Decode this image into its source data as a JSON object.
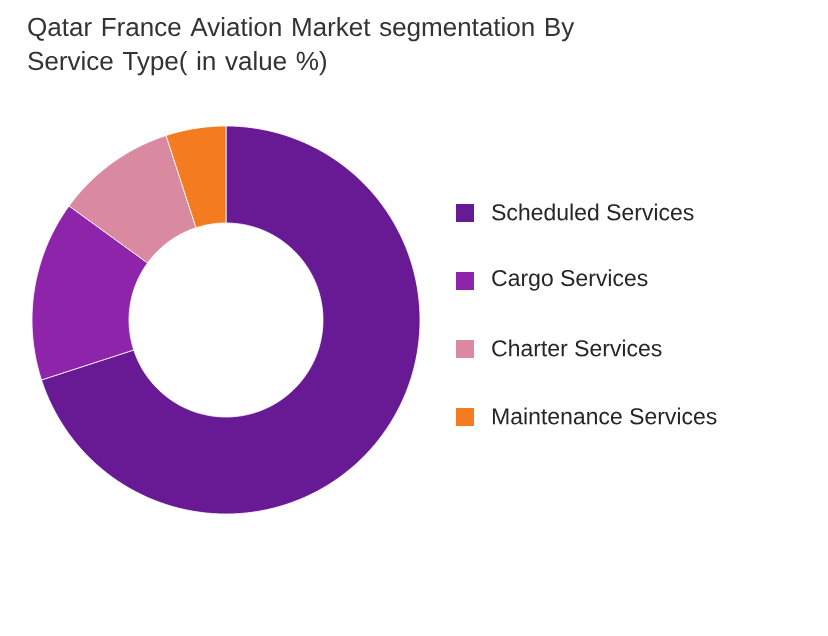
{
  "chart_data": {
    "type": "donut",
    "title": "Qatar France Aviation Market segmentation By Service Type( in value %)",
    "categories": [
      "Scheduled Services",
      "Cargo Services",
      "Charter Services",
      "Maintenance Services"
    ],
    "values": [
      70,
      15,
      10,
      5
    ],
    "colors": [
      "#671a94",
      "#8e24aa",
      "#da8aa0",
      "#f47b20"
    ],
    "legend": "right"
  }
}
